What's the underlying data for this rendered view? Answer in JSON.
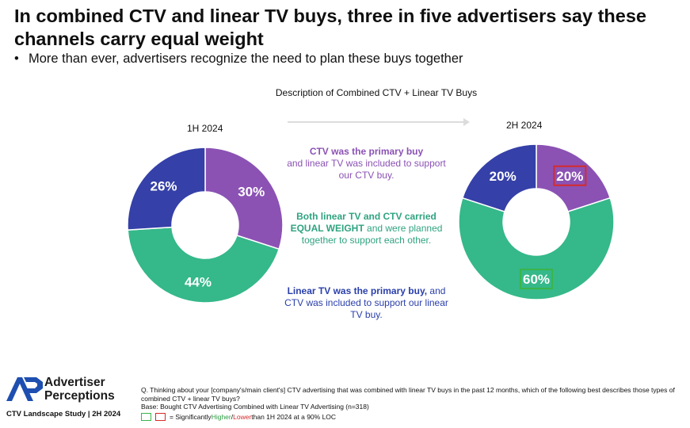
{
  "slide": {
    "title": "In combined CTV and linear TV buys, three in five advertisers say these channels carry equal weight",
    "bullet": "More than ever, advertisers recognize the need to plan these buys together"
  },
  "descriptions": {
    "primary_ctv_bold": "CTV was the primary buy",
    "primary_ctv_rest": "and linear TV was included to support our CTV buy.",
    "equal_a": "Both linear TV and CTV carried ",
    "equal_bold": "EQUAL WEIGHT",
    "equal_b": " and were planned together to support each other.",
    "primary_linear_bold": "Linear TV was the primary buy,",
    "primary_linear_rest": " and CTV was included to support our linear TV buy."
  },
  "footer": {
    "logo_line1": "Advertiser",
    "logo_line2": "Perceptions",
    "study": "CTV Landscape Study | 2H 2024",
    "question": "Q. Thinking about your [company's/main client's] CTV advertising that was combined with linear TV buys in the past 12 months, which of the following best describes those types of combined CTV + linear TV buys?",
    "base": "Base: Bought CTV Advertising Combined with Linear TV Advertising (n=318)",
    "legend_prefix": "= Significantly ",
    "legend_higher": "Higher",
    "legend_sep": " / ",
    "legend_lower": "Lower",
    "legend_suffix": " than 1H 2024 at a 90% LOC"
  },
  "colors": {
    "ctv_primary": "#8b52b4",
    "equal_weight": "#35b88a",
    "linear_primary": "#3540a8",
    "sig_higher": "#3ab54a",
    "sig_lower": "#d62b2b"
  },
  "chart_data": {
    "type": "pie",
    "title": "Description of Combined CTV + Linear TV Buys",
    "categories": [
      "CTV was the primary buy",
      "Both linear TV and CTV carried EQUAL WEIGHT",
      "Linear TV was the primary buy"
    ],
    "series": [
      {
        "name": "1H 2024",
        "values": [
          30,
          44,
          26
        ],
        "labels": [
          "30%",
          "44%",
          "26%"
        ],
        "significance": [
          "none",
          "none",
          "none"
        ]
      },
      {
        "name": "2H 2024",
        "values": [
          20,
          60,
          20
        ],
        "labels": [
          "20%",
          "60%",
          "20%"
        ],
        "significance": [
          "lower",
          "higher",
          "none"
        ]
      }
    ],
    "style": "donut",
    "unit": "%"
  }
}
